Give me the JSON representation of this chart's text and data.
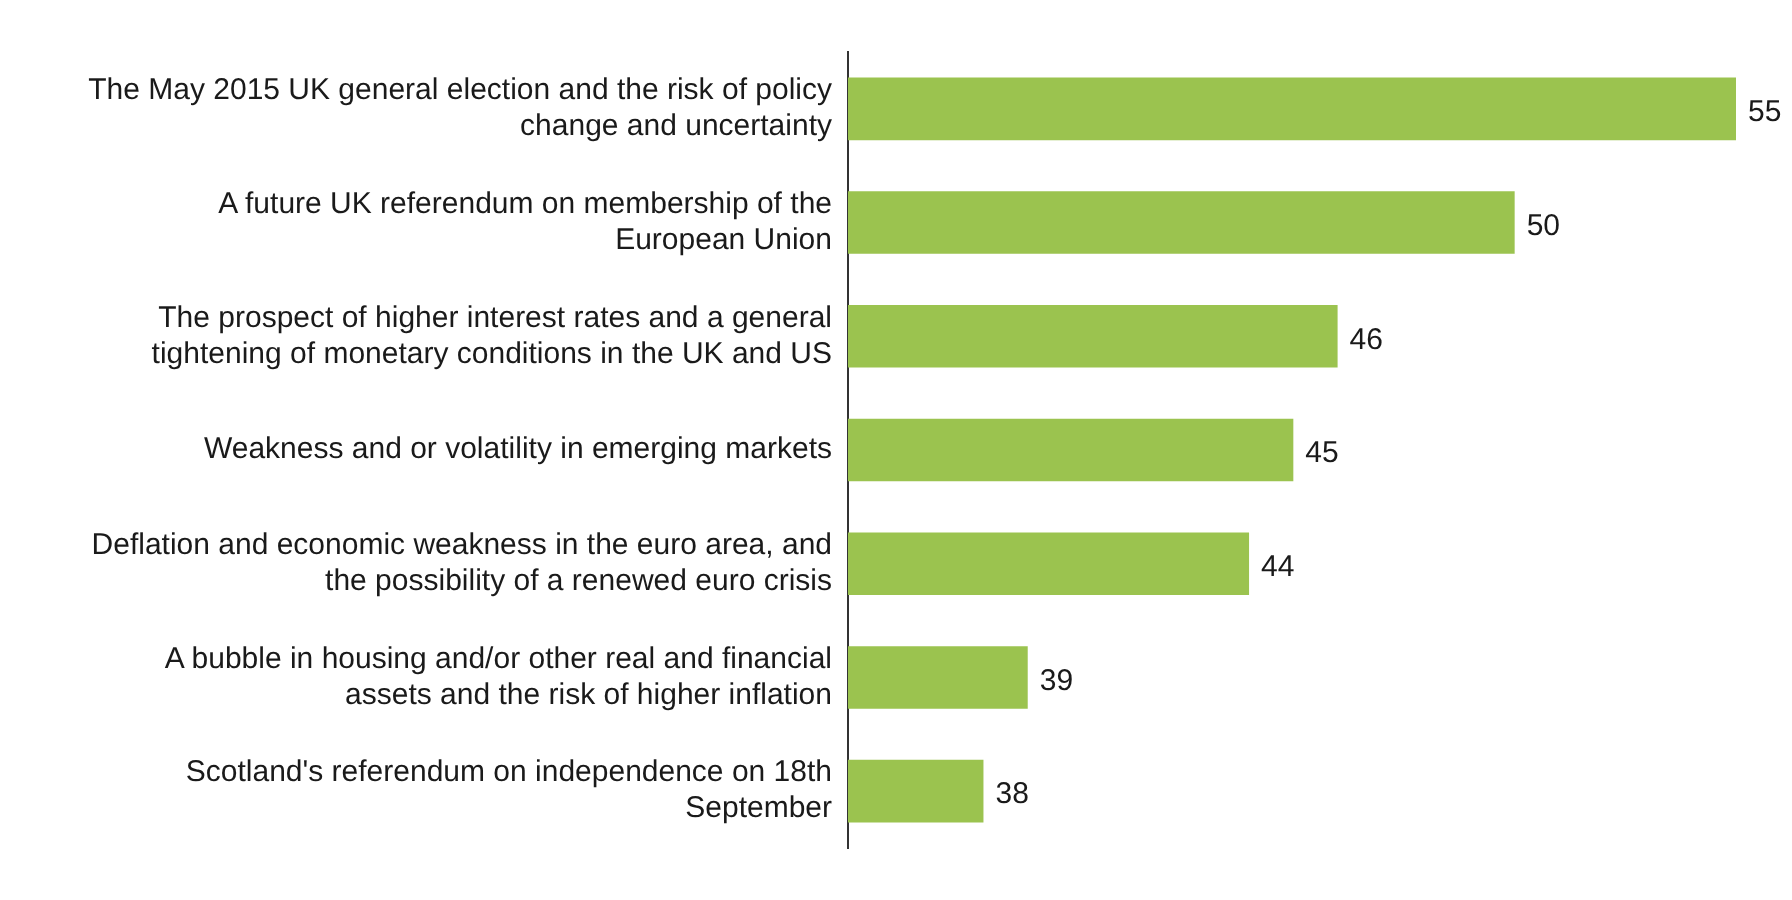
{
  "chart_data": {
    "type": "bar",
    "orientation": "horizontal",
    "categories": [
      "The May 2015 UK general election and the risk of policy change and uncertainty",
      "A future UK referendum on membership of the European Union",
      "The prospect of higher interest rates and a general tightening of monetary conditions in the UK and US",
      "Weakness and or volatility in emerging markets",
      "Deflation and economic weakness in the euro area, and the possibility of a renewed euro crisis",
      "A bubble in housing and/or other real and financial assets and the risk of higher inflation",
      "Scotland's referendum on independence on 18th September"
    ],
    "values": [
      55,
      50,
      46,
      45,
      44,
      39,
      38
    ],
    "color": "#9bc34f",
    "tick_labels": "y",
    "data_labels": true
  }
}
